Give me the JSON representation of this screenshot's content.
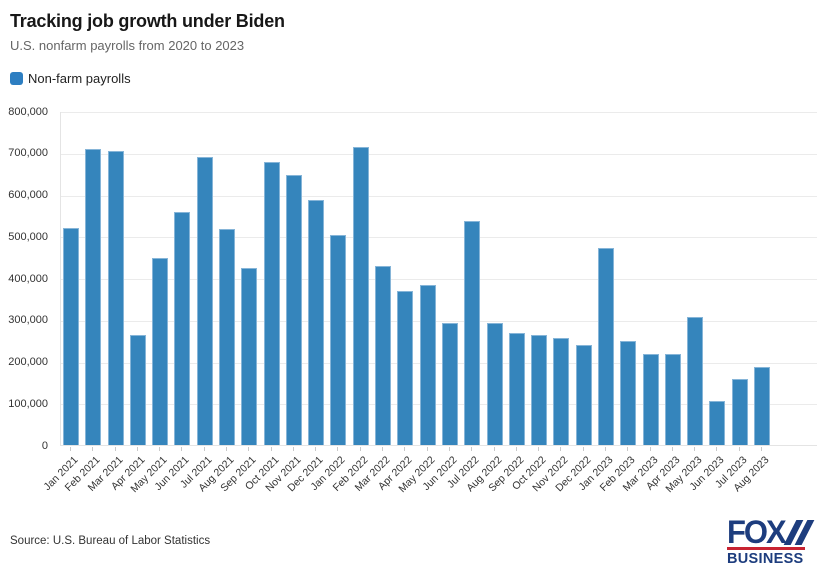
{
  "header": {
    "title": "Tracking job growth under Biden",
    "subtitle": "U.S. nonfarm payrolls from 2020 to 2023"
  },
  "legend": {
    "label": "Non-farm payrolls",
    "swatch_color": "#2d7ec1"
  },
  "chart_data": {
    "type": "bar",
    "title": "Tracking job growth under Biden",
    "subtitle": "U.S. nonfarm payrolls from 2020 to 2023",
    "series_name": "Non-farm payrolls",
    "categories": [
      "Jan 2021",
      "Feb 2021",
      "Mar 2021",
      "Apr 2021",
      "May 2021",
      "Jun 2021",
      "Jul 2021",
      "Aug 2021",
      "Sep 2021",
      "Oct 2021",
      "Nov 2021",
      "Dec 2021",
      "Jan 2022",
      "Feb 2022",
      "Mar 2022",
      "Apr 2022",
      "May 2022",
      "Jun 2022",
      "Jul 2022",
      "Aug 2022",
      "Sep 2022",
      "Oct 2022",
      "Nov 2022",
      "Dec 2022",
      "Jan 2023",
      "Feb 2023",
      "Mar 2023",
      "Apr 2023",
      "May 2023",
      "Jun 2023",
      "Jul 2023",
      "Aug 2023"
    ],
    "values": [
      520000,
      710000,
      704000,
      263000,
      447000,
      557000,
      689000,
      517000,
      424000,
      677000,
      647000,
      588000,
      504000,
      714000,
      428000,
      368000,
      384000,
      293000,
      537000,
      292000,
      269000,
      263000,
      256000,
      239000,
      472000,
      248000,
      217000,
      217000,
      306000,
      105000,
      157000,
      187000
    ],
    "xlabel": "",
    "ylabel": "",
    "ylim": [
      0,
      800000
    ],
    "ytick_step": 100000,
    "ytick_labels": [
      "0",
      "100,000",
      "200,000",
      "300,000",
      "400,000",
      "500,000",
      "600,000",
      "700,000",
      "800,000"
    ],
    "grid": true,
    "bar_color": "#3585bc",
    "bar_border_color": "#86b5d8",
    "legend_position": "top-left"
  },
  "footer": {
    "source": "Source: U.S. Bureau of Labor Statistics",
    "logo": {
      "line1": "FOX",
      "line2": "BUSINESS",
      "navy": "#1d3d7e",
      "red": "#c82332"
    }
  }
}
